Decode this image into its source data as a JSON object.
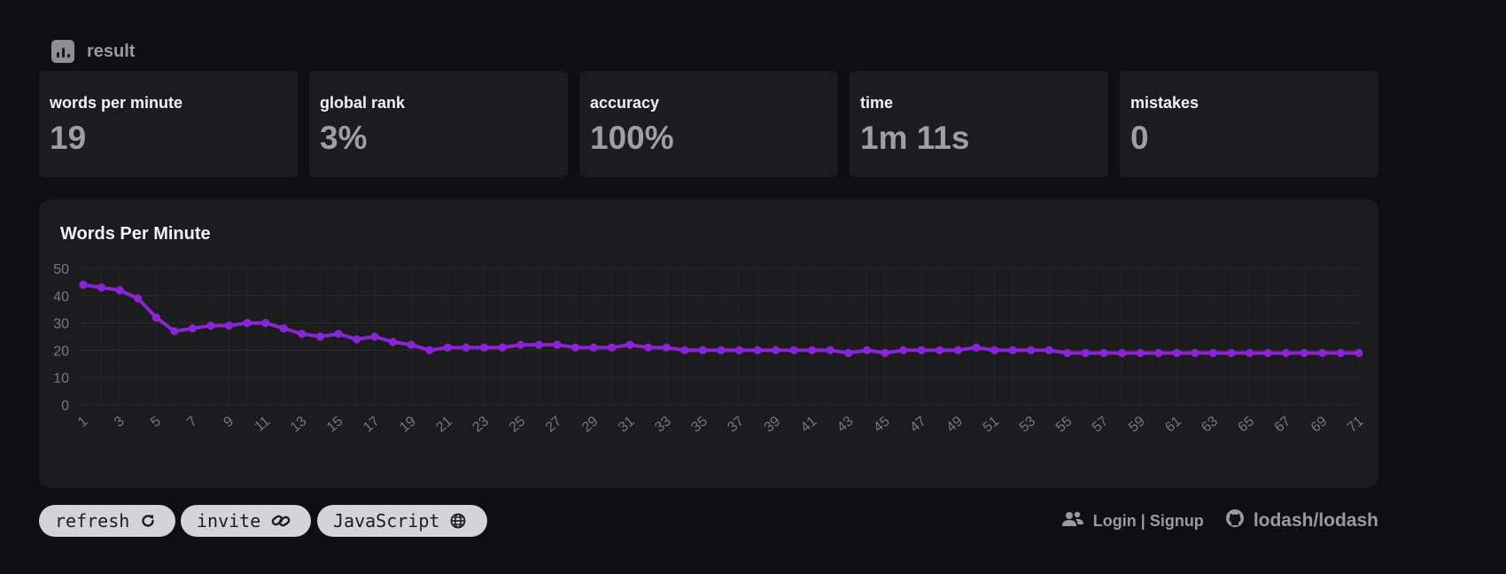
{
  "header": {
    "title": "result",
    "icon": "bar-chart-icon"
  },
  "stats": [
    {
      "label": "words per minute",
      "value": "19"
    },
    {
      "label": "global rank",
      "value": "3%"
    },
    {
      "label": "accuracy",
      "value": "100%"
    },
    {
      "label": "time",
      "value": "1m 11s"
    },
    {
      "label": "mistakes",
      "value": "0"
    }
  ],
  "chart_data": {
    "type": "line",
    "title": "Words Per Minute",
    "xlabel": "",
    "ylabel": "",
    "ylim": [
      0,
      50
    ],
    "yticks": [
      0,
      10,
      20,
      30,
      40,
      50
    ],
    "grid": true,
    "color": "#8b24d4",
    "x": [
      1,
      2,
      3,
      4,
      5,
      6,
      7,
      8,
      9,
      10,
      11,
      12,
      13,
      14,
      15,
      16,
      17,
      18,
      19,
      20,
      21,
      22,
      23,
      24,
      25,
      26,
      27,
      28,
      29,
      30,
      31,
      32,
      33,
      34,
      35,
      36,
      37,
      38,
      39,
      40,
      41,
      42,
      43,
      44,
      45,
      46,
      47,
      48,
      49,
      50,
      51,
      52,
      53,
      54,
      55,
      56,
      57,
      58,
      59,
      60,
      61,
      62,
      63,
      64,
      65,
      66,
      67,
      68,
      69,
      70,
      71
    ],
    "xtick_labels": [
      "1",
      "3",
      "5",
      "7",
      "9",
      "11",
      "13",
      "15",
      "17",
      "19",
      "21",
      "23",
      "25",
      "27",
      "29",
      "31",
      "33",
      "35",
      "37",
      "39",
      "41",
      "43",
      "45",
      "47",
      "49",
      "51",
      "53",
      "55",
      "57",
      "59",
      "61",
      "63",
      "65",
      "67",
      "69",
      "71"
    ],
    "series": [
      {
        "values": [
          44,
          43,
          42,
          39,
          32,
          27,
          28,
          29,
          29,
          30,
          30,
          28,
          26,
          25,
          26,
          24,
          25,
          23,
          22,
          20,
          21,
          21,
          21,
          21,
          22,
          22,
          22,
          21,
          21,
          21,
          22,
          21,
          21,
          20,
          20,
          20,
          20,
          20,
          20,
          20,
          20,
          20,
          19,
          20,
          19,
          20,
          20,
          20,
          20,
          21,
          20,
          20,
          20,
          20,
          19,
          19,
          19,
          19,
          19,
          19,
          19,
          19,
          19,
          19,
          19,
          19,
          19,
          19,
          19,
          19,
          19
        ]
      }
    ]
  },
  "actions": {
    "refresh_label": "refresh",
    "invite_label": "invite",
    "language_label": "JavaScript"
  },
  "footer": {
    "login_label": "Login | Signup",
    "repo_label": "lodash/lodash"
  }
}
